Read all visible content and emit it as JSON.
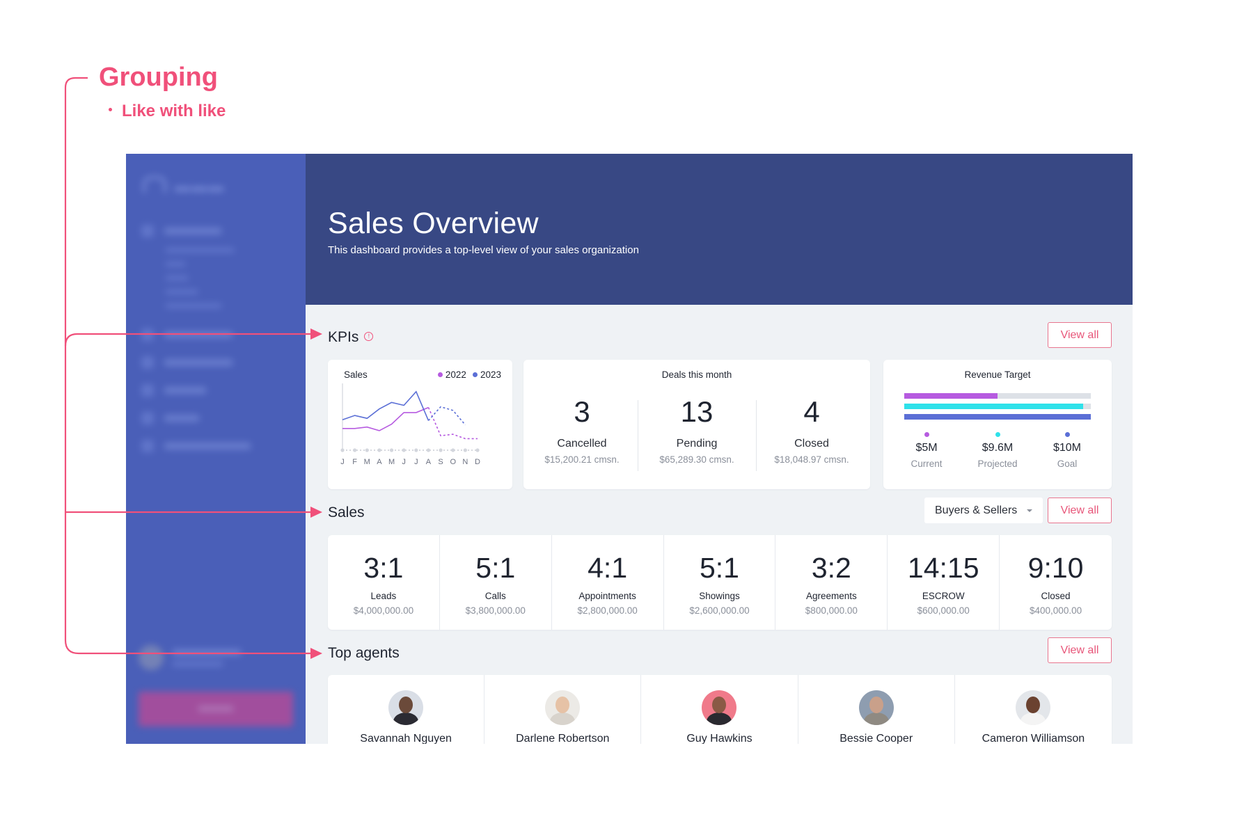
{
  "annotation": {
    "title": "Grouping",
    "bullet": "Like with like",
    "color": "#f0507a"
  },
  "hero": {
    "title": "Sales Overview",
    "subtitle": "This dashboard provides a top-level view of your sales organization"
  },
  "kpis": {
    "title": "KPIs",
    "info_icon": "info-circle-icon",
    "view_all": "View all",
    "sales_chart": {
      "label": "Sales",
      "legend": [
        {
          "name": "2022",
          "color": "#b65be0"
        },
        {
          "name": "2023",
          "color": "#5b6fd6"
        }
      ]
    },
    "deals": {
      "title": "Deals this month",
      "items": [
        {
          "value": "3",
          "label": "Cancelled",
          "sub": "$15,200.21 cmsn."
        },
        {
          "value": "13",
          "label": "Pending",
          "sub": "$65,289.30 cmsn."
        },
        {
          "value": "4",
          "label": "Closed",
          "sub": "$18,048.97 cmsn."
        }
      ]
    },
    "revenue": {
      "title": "Revenue Target",
      "bars": [
        {
          "color": "#b65be0",
          "fraction": 0.5
        },
        {
          "color": "#2ee1ea",
          "fraction": 0.96
        },
        {
          "color": "#5b6fd6",
          "fraction": 1.0
        }
      ],
      "items": [
        {
          "value": "$5M",
          "label": "Current",
          "color": "#b65be0"
        },
        {
          "value": "$9.6M",
          "label": "Projected",
          "color": "#2ee1ea"
        },
        {
          "value": "$10M",
          "label": "Goal",
          "color": "#5b6fd6"
        }
      ]
    }
  },
  "chart_data": {
    "type": "line",
    "categories": [
      "J",
      "F",
      "M",
      "A",
      "M",
      "J",
      "J",
      "A",
      "S",
      "O",
      "N",
      "D"
    ],
    "series": [
      {
        "name": "2022",
        "color": "#b65be0",
        "values": [
          3.0,
          3.0,
          3.2,
          2.7,
          3.6,
          5.2,
          5.2,
          5.9,
          2.0,
          2.2,
          1.6,
          1.6
        ]
      },
      {
        "name": "2023",
        "color": "#5b6fd6",
        "values": [
          4.2,
          4.8,
          4.4,
          5.7,
          6.6,
          6.2,
          8.1,
          4.1,
          6.0,
          5.5,
          3.5,
          null
        ]
      }
    ],
    "dashed_from_index": 7,
    "ylim": [
      0,
      10
    ]
  },
  "sales": {
    "title": "Sales",
    "dropdown": "Buyers & Sellers",
    "view_all": "View all",
    "items": [
      {
        "ratio": "3:1",
        "label": "Leads",
        "sub": "$4,000,000.00"
      },
      {
        "ratio": "5:1",
        "label": "Calls",
        "sub": "$3,800,000.00"
      },
      {
        "ratio": "4:1",
        "label": "Appointments",
        "sub": "$2,800,000.00"
      },
      {
        "ratio": "5:1",
        "label": "Showings",
        "sub": "$2,600,000.00"
      },
      {
        "ratio": "3:2",
        "label": "Agreements",
        "sub": "$800,000.00"
      },
      {
        "ratio": "14:15",
        "label": "ESCROW",
        "sub": "$600,000.00"
      },
      {
        "ratio": "9:10",
        "label": "Closed",
        "sub": "$400,000.00"
      }
    ]
  },
  "agents": {
    "title": "Top agents",
    "view_all": "View all",
    "items": [
      {
        "name": "Savannah Nguyen",
        "bg": "#d9dee6",
        "skin": "#6b4a3a",
        "shirt": "#2b2b33"
      },
      {
        "name": "Darlene Robertson",
        "bg": "#eceae6",
        "skin": "#e6c2a6",
        "shirt": "#d8d3cc"
      },
      {
        "name": "Guy Hawkins",
        "bg": "#f07a8a",
        "skin": "#8a5a45",
        "shirt": "#2a2a30"
      },
      {
        "name": "Bessie Cooper",
        "bg": "#8e9db0",
        "skin": "#c9a08a",
        "shirt": "#8f8a82"
      },
      {
        "name": "Cameron Williamson",
        "bg": "#e3e6ea",
        "skin": "#6b4230",
        "shirt": "#f4f4f4"
      }
    ]
  }
}
